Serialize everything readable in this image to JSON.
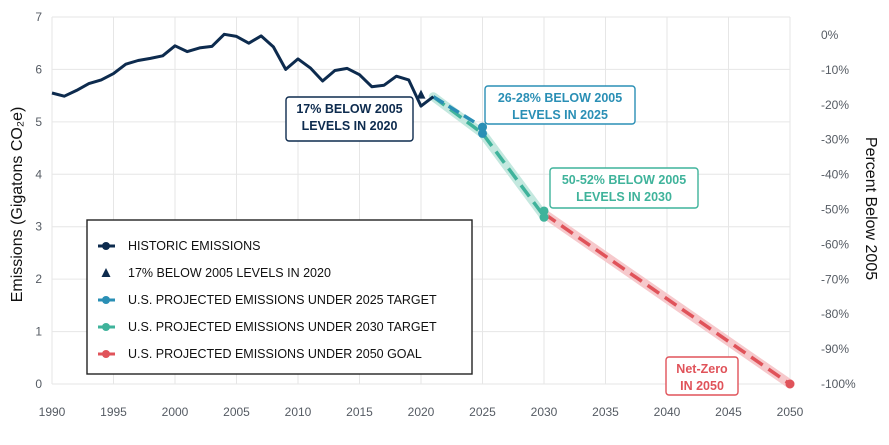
{
  "colors": {
    "historic": "#0d2b4e",
    "target2020": "#0d2b4e",
    "proj2025": "#2a8fb5",
    "proj2030": "#3fb39b",
    "goal2050": "#e0535a",
    "grid": "#e6e6e6",
    "text": "#555b63"
  },
  "chart_data": {
    "type": "line",
    "x_range": [
      1990,
      2050
    ],
    "ylim": [
      0,
      7
    ],
    "y2lim": [
      -100,
      0
    ],
    "grid": true,
    "legend_position": "bottom-left",
    "ylabel": "Emissions (Gigatons CO₂e)",
    "y2label": "Percent Below 2005",
    "x_ticks": [
      "1990",
      "1995",
      "2000",
      "2005",
      "2010",
      "2015",
      "2020",
      "2025",
      "2030",
      "2035",
      "2040",
      "2045",
      "2050"
    ],
    "y_ticks": [
      "0",
      "1",
      "2",
      "3",
      "4",
      "5",
      "6",
      "7"
    ],
    "y2_ticks": [
      "0%",
      "-10%",
      "-20%",
      "-30%",
      "-40%",
      "-50%",
      "-60%",
      "-70%",
      "-80%",
      "-90%",
      "-100%"
    ],
    "series": [
      {
        "name": "HISTORIC EMISSIONS",
        "color_key": "historic",
        "style": "solid",
        "points": [
          [
            1990,
            5.55
          ],
          [
            1991,
            5.49
          ],
          [
            1992,
            5.6
          ],
          [
            1993,
            5.73
          ],
          [
            1994,
            5.8
          ],
          [
            1995,
            5.92
          ],
          [
            1996,
            6.1
          ],
          [
            1997,
            6.17
          ],
          [
            1998,
            6.21
          ],
          [
            1999,
            6.26
          ],
          [
            2000,
            6.45
          ],
          [
            2001,
            6.34
          ],
          [
            2002,
            6.41
          ],
          [
            2003,
            6.44
          ],
          [
            2004,
            6.67
          ],
          [
            2005,
            6.63
          ],
          [
            2006,
            6.5
          ],
          [
            2007,
            6.64
          ],
          [
            2008,
            6.43
          ],
          [
            2009,
            6.0
          ],
          [
            2010,
            6.2
          ],
          [
            2011,
            6.03
          ],
          [
            2012,
            5.78
          ],
          [
            2013,
            5.98
          ],
          [
            2014,
            6.02
          ],
          [
            2015,
            5.9
          ],
          [
            2016,
            5.67
          ],
          [
            2017,
            5.7
          ],
          [
            2018,
            5.87
          ],
          [
            2019,
            5.8
          ],
          [
            2020,
            5.3
          ],
          [
            2021,
            5.48
          ]
        ]
      },
      {
        "name": "17% BELOW 2005 LEVELS IN 2020",
        "color_key": "target2020",
        "style": "marker",
        "points": [
          [
            2020,
            5.52
          ]
        ]
      },
      {
        "name": "U.S. PROJECTED EMISSIONS UNDER 2025 TARGET",
        "color_key": "proj2025",
        "style": "dashed",
        "points": [
          [
            2021,
            5.48
          ],
          [
            2025,
            4.9
          ]
        ]
      },
      {
        "name": "U.S. PROJECTED EMISSIONS UNDER 2030 TARGET",
        "color_key": "proj2030",
        "style": "dashed",
        "points": [
          [
            2021,
            5.48
          ],
          [
            2025,
            4.78
          ],
          [
            2030,
            3.2
          ]
        ]
      },
      {
        "name": "U.S. PROJECTED EMISSIONS UNDER 2050 GOAL",
        "color_key": "goal2050",
        "style": "dashed",
        "points": [
          [
            2030,
            3.25
          ],
          [
            2050,
            0
          ]
        ]
      }
    ],
    "annotations": [
      {
        "lines": [
          "17% BELOW 2005",
          "LEVELS IN 2020"
        ],
        "color_key": "historic"
      },
      {
        "lines": [
          "26-28% BELOW 2005",
          "LEVELS IN 2025"
        ],
        "color_key": "proj2025"
      },
      {
        "lines": [
          "50-52% BELOW 2005",
          "LEVELS IN 2030"
        ],
        "color_key": "proj2030"
      },
      {
        "lines": [
          "Net-Zero",
          "IN 2050"
        ],
        "color_key": "goal2050"
      }
    ]
  }
}
